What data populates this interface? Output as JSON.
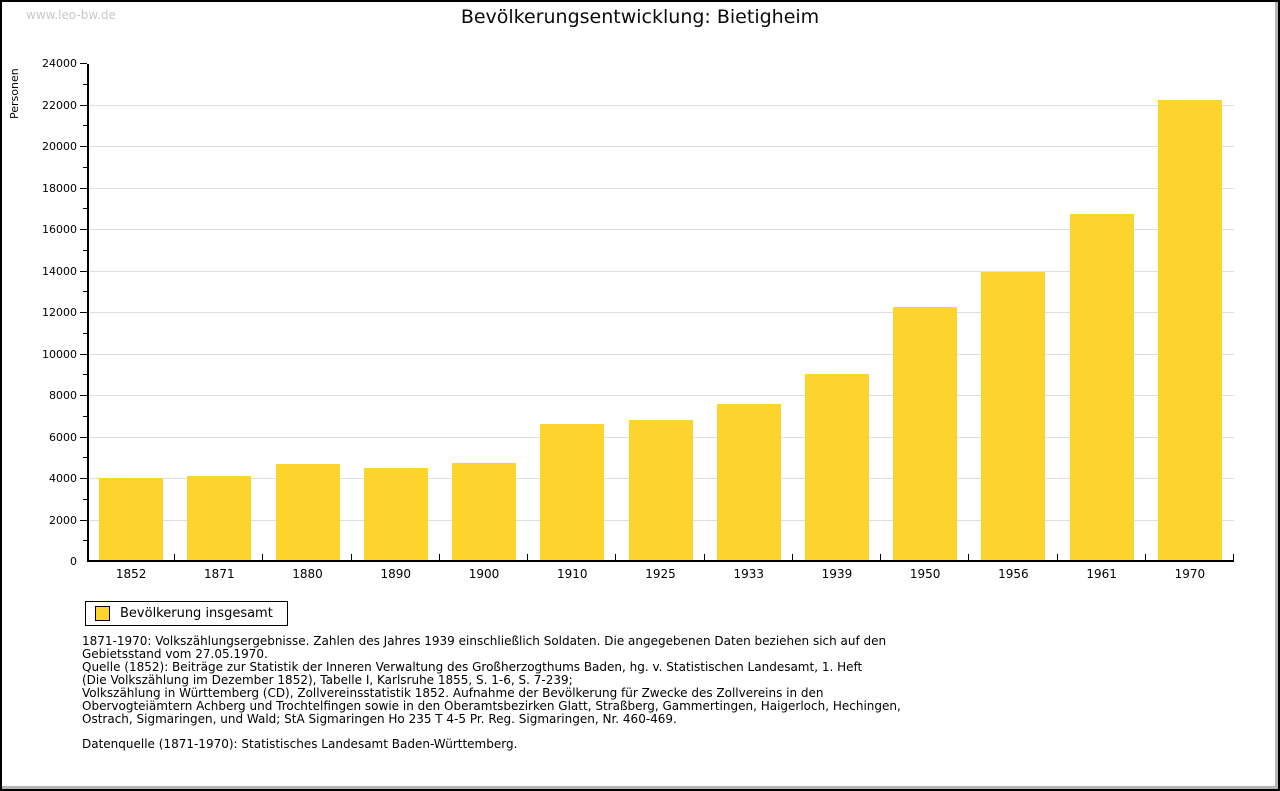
{
  "watermark": "www.leo-bw.de",
  "title": "Bevölkerungsentwicklung: Bietigheim",
  "chart_data": {
    "type": "bar",
    "title": "Bevölkerungsentwicklung: Bietigheim",
    "xlabel": "",
    "ylabel": "Personen",
    "categories": [
      "1852",
      "1871",
      "1880",
      "1890",
      "1900",
      "1910",
      "1925",
      "1933",
      "1939",
      "1950",
      "1956",
      "1961",
      "1970"
    ],
    "series": [
      {
        "name": "Bevölkerung insgesamt",
        "values": [
          4050,
          4150,
          4700,
          4550,
          4750,
          6650,
          6850,
          7600,
          9050,
          12300,
          14000,
          16750,
          22250
        ]
      }
    ],
    "ylim": [
      0,
      24000
    ],
    "ytick_major_step": 2000,
    "ytick_minor_step": 1000,
    "grid": true,
    "legend_position": "bottom-left",
    "bar_color": "#fdd42e",
    "gridline_color": "#dedede"
  },
  "legend": {
    "label": "Bevölkerung insgesamt"
  },
  "footer": {
    "lines": [
      "1871-1970: Volkszählungsergebnisse. Zahlen des Jahres 1939 einschließlich Soldaten. Die angegebenen Daten beziehen sich auf den",
      "Gebietsstand vom 27.05.1970.",
      "Quelle (1852): Beiträge zur Statistik der Inneren Verwaltung des Großherzogthums Baden, hg. v. Statistischen Landesamt, 1. Heft",
      "(Die Volkszählung im Dezember 1852), Tabelle I, Karlsruhe 1855, S. 1-6, S. 7-239;",
      "Volkszählung in Württemberg (CD), Zollvereinsstatistik 1852. Aufnahme der Bevölkerung für Zwecke des Zollvereins in den",
      "Obervogteiämtern Achberg und Trochtelfingen sowie in den Oberamtsbezirken Glatt, Straßberg, Gammertingen, Haigerloch, Hechingen,",
      "Ostrach, Sigmaringen, und Wald; StA Sigmaringen Ho 235 T 4-5 Pr. Reg. Sigmaringen, Nr. 460-469."
    ],
    "datasource": "Datenquelle (1871-1970): Statistisches Landesamt Baden-Württemberg."
  }
}
